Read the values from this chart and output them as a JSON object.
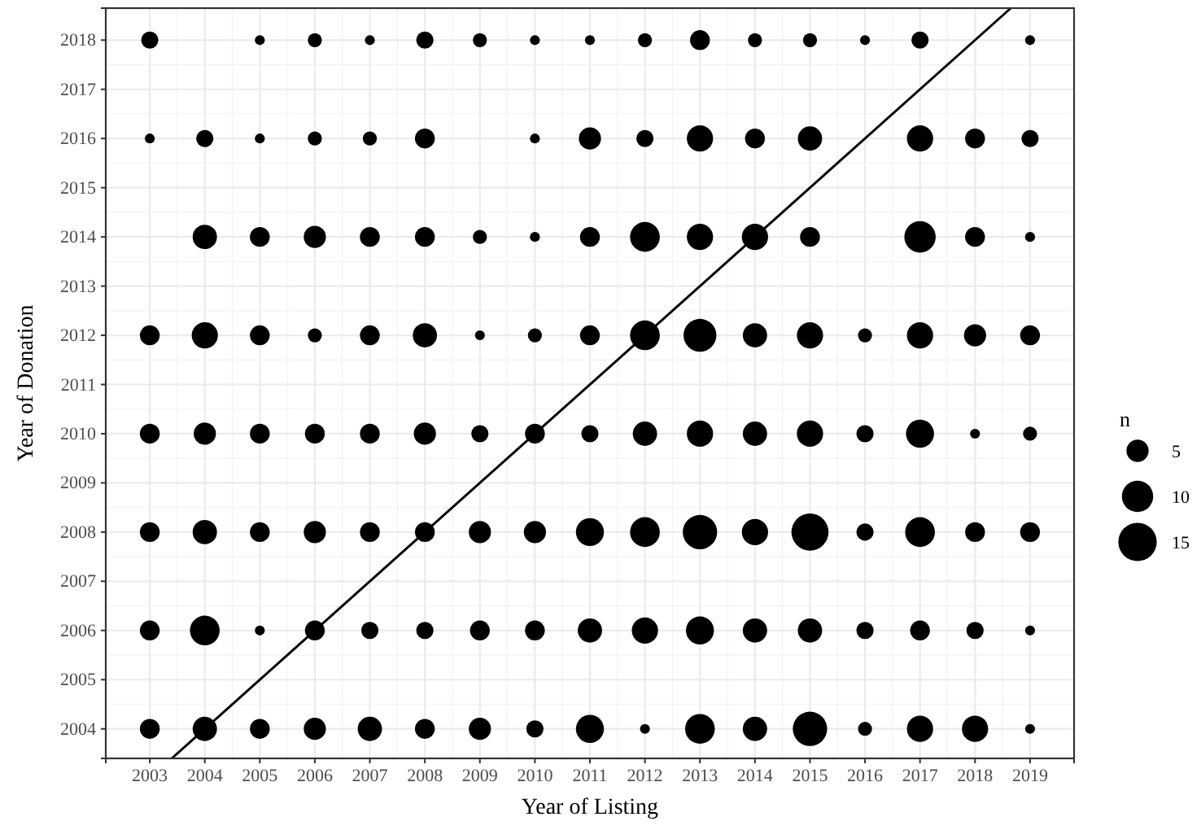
{
  "chart_data": {
    "type": "bubble",
    "xlabel": "Year of Listing",
    "ylabel": "Year of Donation",
    "legend_title": "n",
    "size_legend": [
      5,
      10,
      15
    ],
    "grid": true,
    "x": [
      2003,
      2004,
      2005,
      2006,
      2007,
      2008,
      2009,
      2010,
      2011,
      2012,
      2013,
      2014,
      2015,
      2016,
      2017,
      2018,
      2019
    ],
    "xlim": [
      2002.2,
      2019.8
    ],
    "xticks": [
      2003,
      2004,
      2005,
      2006,
      2007,
      2008,
      2009,
      2010,
      2011,
      2012,
      2013,
      2014,
      2015,
      2016,
      2017,
      2018,
      2019
    ],
    "ylim": [
      2003.4,
      2018.65
    ],
    "yticks": [
      2004,
      2005,
      2006,
      2007,
      2008,
      2009,
      2010,
      2011,
      2012,
      2013,
      2014,
      2015,
      2016,
      2017,
      2018
    ],
    "series": [
      {
        "color": "#000000",
        "values": [
          2018,
          null,
          2018,
          2018,
          2018,
          2018,
          2018,
          2018,
          2018,
          2018,
          2018,
          2018,
          2018,
          2018,
          2018,
          null,
          2018
        ],
        "sizes": [
          3,
          null,
          1,
          2,
          1,
          3,
          2,
          1,
          1,
          2,
          4,
          2,
          2,
          1,
          3,
          null,
          1
        ]
      },
      {
        "color": "#000000",
        "values": [
          2016,
          2016,
          2016,
          2016,
          2016,
          2016,
          null,
          2016,
          2016,
          2016,
          2016,
          2016,
          2016,
          null,
          2016,
          2016,
          2016
        ],
        "sizes": [
          1,
          3,
          1,
          2,
          2,
          4,
          null,
          1,
          5,
          3,
          7,
          4,
          6,
          null,
          7,
          4,
          3
        ]
      },
      {
        "color": "#000000",
        "values": [
          null,
          2014,
          2014,
          2014,
          2014,
          2014,
          2014,
          2014,
          2014,
          2014,
          2014,
          2014,
          2014,
          null,
          2014,
          2014,
          2014
        ],
        "sizes": [
          null,
          6,
          4,
          5,
          4,
          4,
          2,
          1,
          4,
          9,
          7,
          7,
          4,
          null,
          10,
          4,
          1
        ]
      },
      {
        "color": "#000000",
        "values": [
          2012,
          2012,
          2012,
          2012,
          2012,
          2012,
          2012,
          2012,
          2012,
          2012,
          2012,
          2012,
          2012,
          2012,
          2012,
          2012,
          2012
        ],
        "sizes": [
          4,
          7,
          4,
          2,
          4,
          6,
          1,
          2,
          4,
          9,
          11,
          6,
          7,
          2,
          7,
          5,
          4
        ]
      },
      {
        "color": "#000000",
        "values": [
          2010,
          2010,
          2010,
          2010,
          2010,
          2010,
          2010,
          2010,
          2010,
          2010,
          2010,
          2010,
          2010,
          2010,
          2010,
          2010,
          2010
        ],
        "sizes": [
          4,
          5,
          4,
          4,
          4,
          5,
          3,
          4,
          3,
          6,
          7,
          6,
          7,
          3,
          8,
          1,
          2
        ]
      },
      {
        "color": "#000000",
        "values": [
          2008,
          2008,
          2008,
          2008,
          2008,
          2008,
          2008,
          2008,
          2008,
          2008,
          2008,
          2008,
          2008,
          2008,
          2008,
          2008,
          2008
        ],
        "sizes": [
          4,
          6,
          4,
          5,
          4,
          4,
          5,
          5,
          8,
          9,
          12,
          7,
          14,
          3,
          9,
          4,
          4
        ]
      },
      {
        "color": "#000000",
        "values": [
          2006,
          2006,
          2006,
          2006,
          2006,
          2006,
          2006,
          2006,
          2006,
          2006,
          2006,
          2006,
          2006,
          2006,
          2006,
          2006,
          2006
        ],
        "sizes": [
          4,
          9,
          1,
          4,
          3,
          3,
          4,
          4,
          6,
          7,
          8,
          6,
          6,
          3,
          4,
          3,
          1
        ]
      },
      {
        "color": "#000000",
        "values": [
          2004,
          2004,
          2004,
          2004,
          2004,
          2004,
          2004,
          2004,
          2004,
          2004,
          2004,
          2004,
          2004,
          2004,
          2004,
          2004,
          2004
        ],
        "sizes": [
          4,
          6,
          4,
          5,
          6,
          4,
          5,
          3,
          8,
          1,
          9,
          6,
          12,
          2,
          7,
          7,
          1
        ]
      },
      {
        "type": "line",
        "color": "#000000",
        "marker": "none",
        "line_style": "solid",
        "x": [
          2003.4,
          2018.65
        ],
        "values": [
          2003.4,
          2018.65
        ]
      }
    ]
  }
}
